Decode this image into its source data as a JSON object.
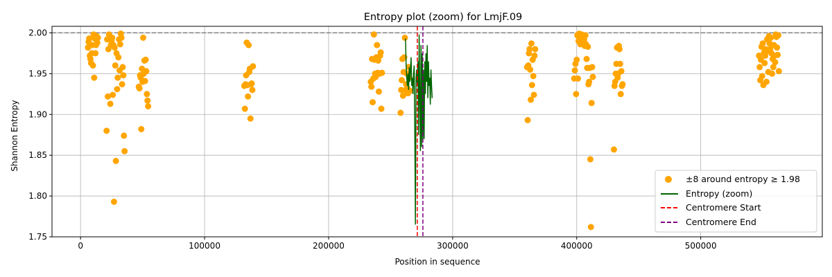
{
  "chart_data": {
    "type": "scatter",
    "title": "Entropy plot (zoom) for LmjF.09",
    "xlabel": "Position in sequence",
    "ylabel": "Shannon Entropy",
    "xlim": [
      -23000,
      598000
    ],
    "ylim": [
      1.75,
      2.008
    ],
    "x_ticks": [
      0,
      100000,
      200000,
      300000,
      400000,
      500000
    ],
    "y_ticks": [
      1.75,
      1.8,
      1.85,
      1.9,
      1.95,
      2.0
    ],
    "y_tick_labels": [
      "1.75",
      "1.80",
      "1.85",
      "1.90",
      "1.95",
      "2.00"
    ],
    "grid": true,
    "legend_position": "lower right",
    "reference_line": {
      "y": 2.0,
      "color": "#808080",
      "style": "dashed"
    },
    "colors": {
      "points": "#FFA500",
      "entropy": "#006400",
      "centromere_start": "#FF0000",
      "centromere_end": "#800080",
      "grid": "#b0b0b0"
    },
    "series": [
      {
        "name": "±8 around entropy ≥ 1.98",
        "kind": "scatter",
        "points": [
          [
            6000,
            1.982
          ],
          [
            6500,
            1.989
          ],
          [
            7000,
            1.993
          ],
          [
            7500,
            1.972
          ],
          [
            8000,
            1.968
          ],
          [
            8500,
            1.963
          ],
          [
            9000,
            1.975
          ],
          [
            9500,
            1.985
          ],
          [
            10000,
            1.96
          ],
          [
            10500,
            1.998
          ],
          [
            11000,
            1.945
          ],
          [
            11500,
            1.993
          ],
          [
            12000,
            1.975
          ],
          [
            12500,
            1.985
          ],
          [
            13000,
            1.996
          ],
          [
            13500,
            1.988
          ],
          [
            14000,
            1.994
          ],
          [
            21000,
            1.88
          ],
          [
            21500,
            1.992
          ],
          [
            22000,
            1.922
          ],
          [
            22500,
            1.98
          ],
          [
            23000,
            1.998
          ],
          [
            23500,
            1.994
          ],
          [
            24000,
            1.913
          ],
          [
            24500,
            1.985
          ],
          [
            25000,
            1.99
          ],
          [
            25500,
            1.994
          ],
          [
            26000,
            1.924
          ],
          [
            26500,
            1.985
          ],
          [
            27000,
            1.793
          ],
          [
            27500,
            1.982
          ],
          [
            28000,
            1.96
          ],
          [
            28500,
            1.843
          ],
          [
            29000,
            1.975
          ],
          [
            29500,
            1.931
          ],
          [
            30000,
            1.945
          ],
          [
            30500,
            1.97
          ],
          [
            31000,
            1.992
          ],
          [
            31500,
            1.954
          ],
          [
            32000,
            1.986
          ],
          [
            32500,
            1.999
          ],
          [
            33000,
            1.994
          ],
          [
            33500,
            1.937
          ],
          [
            34000,
            1.958
          ],
          [
            34500,
            1.948
          ],
          [
            35000,
            1.874
          ],
          [
            35500,
            1.855
          ],
          [
            47000,
            1.934
          ],
          [
            47500,
            1.932
          ],
          [
            48000,
            1.948
          ],
          [
            48500,
            1.945
          ],
          [
            49000,
            1.882
          ],
          [
            49500,
            1.956
          ],
          [
            50000,
            1.94
          ],
          [
            50500,
            1.994
          ],
          [
            51000,
            1.95
          ],
          [
            51500,
            1.966
          ],
          [
            52000,
            1.941
          ],
          [
            52500,
            1.967
          ],
          [
            53000,
            1.953
          ],
          [
            53500,
            1.925
          ],
          [
            54000,
            1.917
          ],
          [
            54500,
            1.91
          ],
          [
            132000,
            1.935
          ],
          [
            132500,
            1.907
          ],
          [
            133000,
            1.937
          ],
          [
            133500,
            1.948
          ],
          [
            134000,
            1.988
          ],
          [
            134500,
            1.936
          ],
          [
            135000,
            1.922
          ],
          [
            135500,
            1.985
          ],
          [
            136000,
            1.952
          ],
          [
            136500,
            1.956
          ],
          [
            137000,
            1.895
          ],
          [
            137500,
            1.937
          ],
          [
            138000,
            1.938
          ],
          [
            138500,
            1.93
          ],
          [
            139000,
            1.959
          ],
          [
            234000,
            1.94
          ],
          [
            234500,
            1.934
          ],
          [
            235000,
            1.968
          ],
          [
            235500,
            1.915
          ],
          [
            236000,
            1.944
          ],
          [
            236500,
            1.998
          ],
          [
            237000,
            1.967
          ],
          [
            237500,
            1.95
          ],
          [
            238000,
            1.946
          ],
          [
            238500,
            1.97
          ],
          [
            239000,
            1.985
          ],
          [
            239500,
            1.951
          ],
          [
            240000,
            1.966
          ],
          [
            240500,
            1.928
          ],
          [
            241000,
            1.95
          ],
          [
            241500,
            1.972
          ],
          [
            242000,
            1.976
          ],
          [
            242500,
            1.907
          ],
          [
            243000,
            1.951
          ],
          [
            258000,
            1.902
          ],
          [
            258500,
            1.93
          ],
          [
            259000,
            1.942
          ],
          [
            259500,
            1.968
          ],
          [
            260000,
            1.923
          ],
          [
            260500,
            1.952
          ],
          [
            261000,
            1.97
          ],
          [
            261500,
            1.994
          ],
          [
            262000,
            1.93
          ],
          [
            262500,
            1.937
          ],
          [
            263000,
            1.95
          ],
          [
            263500,
            1.932
          ],
          [
            264000,
            1.926
          ],
          [
            264500,
            1.958
          ],
          [
            265000,
            1.945
          ],
          [
            265500,
            1.929
          ],
          [
            360000,
            1.958
          ],
          [
            360500,
            1.893
          ],
          [
            361000,
            1.96
          ],
          [
            361500,
            1.975
          ],
          [
            362000,
            1.98
          ],
          [
            362500,
            1.955
          ],
          [
            363000,
            1.918
          ],
          [
            363500,
            1.987
          ],
          [
            364000,
            1.936
          ],
          [
            364500,
            1.967
          ],
          [
            365000,
            1.947
          ],
          [
            365500,
            1.924
          ],
          [
            366000,
            1.972
          ],
          [
            366500,
            1.98
          ],
          [
            398000,
            1.944
          ],
          [
            398500,
            1.954
          ],
          [
            399000,
            1.962
          ],
          [
            399500,
            1.925
          ],
          [
            400000,
            1.967
          ],
          [
            400500,
            1.997
          ],
          [
            401000,
            1.944
          ],
          [
            401500,
            1.99
          ],
          [
            402000,
            1.999
          ],
          [
            402500,
            1.994
          ],
          [
            403000,
            1.986
          ],
          [
            403500,
            1.992
          ],
          [
            404000,
            1.998
          ],
          [
            404500,
            1.994
          ],
          [
            405000,
            1.996
          ],
          [
            405500,
            1.989
          ],
          [
            406000,
            1.992
          ],
          [
            406500,
            1.984
          ],
          [
            407000,
            1.997
          ],
          [
            407500,
            1.986
          ],
          [
            408000,
            1.968
          ],
          [
            408500,
            1.957
          ],
          [
            409000,
            1.983
          ],
          [
            409500,
            1.937
          ],
          [
            410000,
            1.94
          ],
          [
            410500,
            1.957
          ],
          [
            411000,
            1.845
          ],
          [
            411500,
            1.762
          ],
          [
            412000,
            1.914
          ],
          [
            412500,
            1.958
          ],
          [
            413000,
            1.946
          ],
          [
            430000,
            1.857
          ],
          [
            430500,
            1.935
          ],
          [
            431000,
            1.94
          ],
          [
            431500,
            1.95
          ],
          [
            432000,
            1.962
          ],
          [
            432500,
            1.982
          ],
          [
            433000,
            1.945
          ],
          [
            433500,
            1.95
          ],
          [
            434000,
            1.984
          ],
          [
            434500,
            1.98
          ],
          [
            435000,
            1.962
          ],
          [
            435500,
            1.925
          ],
          [
            436000,
            1.953
          ],
          [
            436500,
            1.935
          ],
          [
            437000,
            1.937
          ],
          [
            547000,
            1.972
          ],
          [
            547500,
            1.958
          ],
          [
            548000,
            1.942
          ],
          [
            548500,
            1.967
          ],
          [
            549000,
            1.983
          ],
          [
            549500,
            1.947
          ],
          [
            550000,
            1.987
          ],
          [
            550500,
            1.936
          ],
          [
            551000,
            1.976
          ],
          [
            551500,
            1.963
          ],
          [
            552000,
            1.972
          ],
          [
            552500,
            1.98
          ],
          [
            553000,
            1.94
          ],
          [
            553500,
            1.992
          ],
          [
            554000,
            1.978
          ],
          [
            554500,
            1.952
          ],
          [
            555000,
            1.996
          ],
          [
            555500,
            1.987
          ],
          [
            556000,
            1.98
          ],
          [
            556500,
            1.994
          ],
          [
            557000,
            1.975
          ],
          [
            557500,
            1.95
          ],
          [
            558000,
            1.968
          ],
          [
            558500,
            1.958
          ],
          [
            559000,
            1.985
          ],
          [
            559500,
            1.972
          ],
          [
            560000,
            1.964
          ],
          [
            560500,
            1.998
          ],
          [
            561000,
            1.995
          ],
          [
            561500,
            1.982
          ],
          [
            562000,
            1.973
          ],
          [
            562500,
            1.997
          ],
          [
            563000,
            1.953
          ]
        ]
      },
      {
        "name": "Entropy (zoom)",
        "kind": "line",
        "points": [
          [
            262000,
            1.993
          ],
          [
            262500,
            1.96
          ],
          [
            263000,
            1.945
          ],
          [
            263500,
            1.935
          ],
          [
            264000,
            1.95
          ],
          [
            264500,
            1.93
          ],
          [
            265000,
            1.958
          ],
          [
            265500,
            1.94
          ],
          [
            266000,
            1.955
          ],
          [
            266500,
            1.97
          ],
          [
            267000,
            1.935
          ],
          [
            267500,
            1.945
          ],
          [
            268000,
            1.925
          ],
          [
            268500,
            1.95
          ],
          [
            269000,
            1.96
          ],
          [
            269500,
            1.875
          ],
          [
            270000,
            1.765
          ],
          [
            270500,
            1.945
          ],
          [
            271000,
            1.955
          ],
          [
            271500,
            1.935
          ],
          [
            272000,
            1.965
          ],
          [
            272500,
            1.875
          ],
          [
            273000,
            1.998
          ],
          [
            273500,
            1.925
          ],
          [
            274000,
            1.855
          ],
          [
            274500,
            1.985
          ],
          [
            275000,
            1.86
          ],
          [
            275500,
            1.975
          ],
          [
            276000,
            1.87
          ],
          [
            276500,
            1.955
          ],
          [
            277000,
            1.87
          ],
          [
            277500,
            1.965
          ],
          [
            278000,
            1.925
          ],
          [
            278500,
            1.975
          ],
          [
            279000,
            1.94
          ],
          [
            279500,
            1.985
          ],
          [
            280000,
            1.92
          ],
          [
            280500,
            1.965
          ],
          [
            281000,
            1.935
          ],
          [
            281500,
            1.945
          ],
          [
            282000,
            1.912
          ],
          [
            282500,
            1.955
          ],
          [
            283000,
            1.935
          ],
          [
            283500,
            1.92
          ]
        ]
      }
    ],
    "vlines": [
      {
        "name": "Centromere Start",
        "x": 271500,
        "color": "#FF0000",
        "style": "dashed"
      },
      {
        "name": "Centromere End",
        "x": 276000,
        "color": "#800080",
        "style": "dashed"
      }
    ]
  }
}
